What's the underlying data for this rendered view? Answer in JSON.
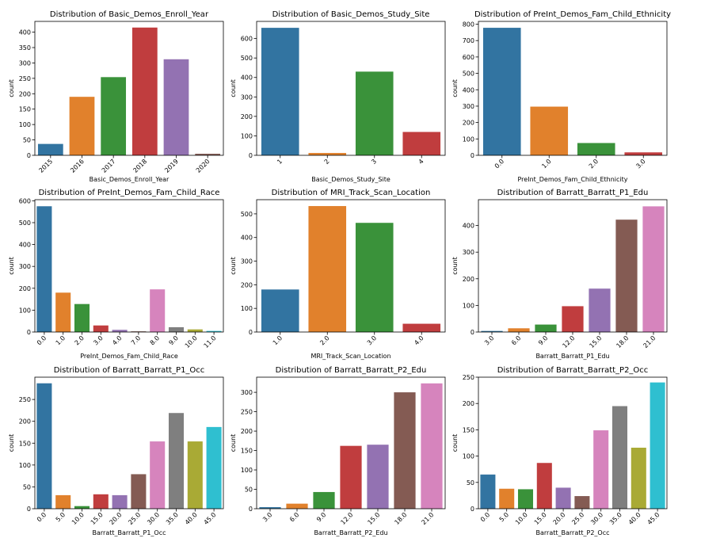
{
  "palette": [
    "#3274a1",
    "#e1812c",
    "#3a923a",
    "#c03d3e",
    "#9372b2",
    "#845b53",
    "#d684bd",
    "#7f7f7f",
    "#a9aa35",
    "#2fbfd0"
  ],
  "chart_data": [
    {
      "type": "bar",
      "title": "Distribution of Basic_Demos_Enroll_Year",
      "xlabel": "Basic_Demos_Enroll_Year",
      "ylabel": "count",
      "categories": [
        "2015",
        "2016",
        "2017",
        "2018",
        "2019",
        "2020"
      ],
      "values": [
        37,
        190,
        254,
        415,
        312,
        5
      ],
      "ylim": [
        0,
        435
      ],
      "yticks": [
        "0",
        "50",
        "100",
        "150",
        "200",
        "250",
        "300",
        "350",
        "400"
      ],
      "xrot": true
    },
    {
      "type": "bar",
      "title": "Distribution of Basic_Demos_Study_Site",
      "xlabel": "Basic_Demos_Study_Site",
      "ylabel": "count",
      "categories": [
        "1",
        "2",
        "3",
        "4"
      ],
      "values": [
        655,
        12,
        430,
        120
      ],
      "ylim": [
        0,
        688
      ],
      "yticks": [
        "0",
        "100",
        "200",
        "300",
        "400",
        "500",
        "600"
      ],
      "xrot": true
    },
    {
      "type": "bar",
      "title": "Distribution of PreInt_Demos_Fam_Child_Ethnicity",
      "xlabel": "PreInt_Demos_Fam_Child_Ethnicity",
      "ylabel": "count",
      "categories": [
        "0.0",
        "1.0",
        "2.0",
        "3.0"
      ],
      "values": [
        778,
        297,
        75,
        18
      ],
      "ylim": [
        0,
        817
      ],
      "yticks": [
        "0",
        "100",
        "200",
        "300",
        "400",
        "500",
        "600",
        "700",
        "800"
      ],
      "xrot": true
    },
    {
      "type": "bar",
      "title": "Distribution of PreInt_Demos_Fam_Child_Race",
      "xlabel": "PreInt_Demos_Fam_Child_Race",
      "ylabel": "count",
      "categories": [
        "0.0",
        "1.0",
        "2.0",
        "3.0",
        "4.0",
        "7.0",
        "8.0",
        "9.0",
        "10.0",
        "11.0"
      ],
      "values": [
        575,
        180,
        128,
        30,
        10,
        3,
        195,
        22,
        12,
        5
      ],
      "ylim": [
        0,
        605
      ],
      "yticks": [
        "0",
        "100",
        "200",
        "300",
        "400",
        "500",
        "600"
      ],
      "xrot": true
    },
    {
      "type": "bar",
      "title": "Distribution of MRI_Track_Scan_Location",
      "xlabel": "MRI_Track_Scan_Location",
      "ylabel": "count",
      "categories": [
        "1.0",
        "2.0",
        "3.0",
        "4.0"
      ],
      "values": [
        180,
        533,
        462,
        35
      ],
      "ylim": [
        0,
        560
      ],
      "yticks": [
        "0",
        "100",
        "200",
        "300",
        "400",
        "500"
      ],
      "xrot": true
    },
    {
      "type": "bar",
      "title": "Distribution of Barratt_Barratt_P1_Edu",
      "xlabel": "Barratt_Barratt_P1_Edu",
      "ylabel": "count",
      "categories": [
        "3.0",
        "6.0",
        "9.0",
        "12.0",
        "15.0",
        "18.0",
        "21.0"
      ],
      "values": [
        4,
        14,
        28,
        97,
        163,
        422,
        472
      ],
      "ylim": [
        0,
        497
      ],
      "yticks": [
        "0",
        "100",
        "200",
        "300",
        "400"
      ],
      "xrot": true
    },
    {
      "type": "bar",
      "title": "Distribution of Barratt_Barratt_P1_Occ",
      "xlabel": "Barratt_Barratt_P1_Occ",
      "ylabel": "count",
      "categories": [
        "0.0",
        "5.0",
        "10.0",
        "15.0",
        "20.0",
        "25.0",
        "30.0",
        "35.0",
        "40.0",
        "45.0"
      ],
      "values": [
        287,
        31,
        6,
        33,
        31,
        79,
        154,
        219,
        154,
        187
      ],
      "ylim": [
        0,
        301
      ],
      "yticks": [
        "0",
        "50",
        "100",
        "150",
        "200",
        "250"
      ],
      "xrot": true
    },
    {
      "type": "bar",
      "title": "Distribution of Barratt_Barratt_P2_Edu",
      "xlabel": "Barratt_Barratt_P2_Edu",
      "ylabel": "count",
      "categories": [
        "3.0",
        "6.0",
        "9.0",
        "12.0",
        "15.0",
        "18.0",
        "21.0"
      ],
      "values": [
        4,
        13,
        43,
        162,
        165,
        300,
        323
      ],
      "ylim": [
        0,
        339
      ],
      "yticks": [
        "0",
        "50",
        "100",
        "150",
        "200",
        "250",
        "300"
      ],
      "xrot": true
    },
    {
      "type": "bar",
      "title": "Distribution of Barratt_Barratt_P2_Occ",
      "xlabel": "Barratt_Barratt_P2_Occ",
      "ylabel": "count",
      "categories": [
        "0.0",
        "5.0",
        "10.0",
        "15.0",
        "20.0",
        "25.0",
        "30.0",
        "35.0",
        "40.0",
        "45.0"
      ],
      "values": [
        65,
        38,
        37,
        87,
        40,
        24,
        149,
        195,
        116,
        240
      ],
      "ylim": [
        0,
        250
      ],
      "yticks": [
        "0",
        "50",
        "100",
        "150",
        "200",
        "250"
      ],
      "xrot": true
    }
  ]
}
